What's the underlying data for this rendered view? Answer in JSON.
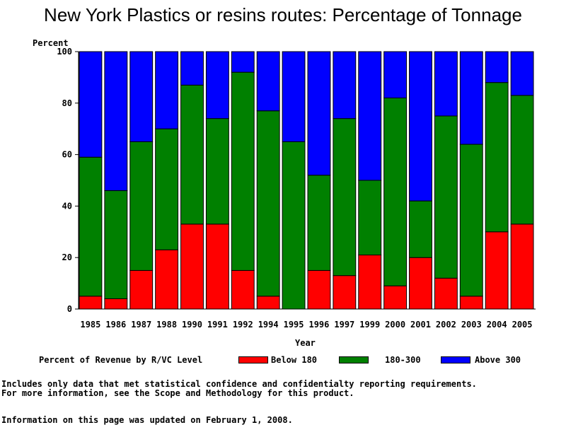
{
  "chart_data": {
    "type": "bar",
    "stacked": true,
    "title": "New York Plastics or resins routes: Percentage of Tonnage",
    "ylabel": "Percent",
    "xlabel": "Year",
    "ylim": [
      0,
      100
    ],
    "yticks": [
      "0",
      "20",
      "40",
      "60",
      "80",
      "100"
    ],
    "categories": [
      "1985",
      "1986",
      "1987",
      "1988",
      "1990",
      "1991",
      "1992",
      "1994",
      "1995",
      "1996",
      "1997",
      "1999",
      "2000",
      "2001",
      "2002",
      "2003",
      "2004",
      "2005"
    ],
    "series": [
      {
        "name": "Below 180",
        "color": "#ff0000",
        "values": [
          5,
          4,
          15,
          23,
          33,
          33,
          15,
          5,
          0,
          15,
          13,
          21,
          9,
          20,
          12,
          5,
          30,
          33
        ]
      },
      {
        "name": "180-300",
        "color": "#008000",
        "values": [
          54,
          42,
          50,
          47,
          54,
          41,
          77,
          72,
          65,
          37,
          61,
          29,
          73,
          22,
          63,
          59,
          58,
          50
        ]
      },
      {
        "name": "Above 300",
        "color": "#0000ff",
        "values": [
          41,
          54,
          35,
          30,
          13,
          26,
          8,
          23,
          35,
          48,
          26,
          50,
          18,
          58,
          25,
          36,
          12,
          17
        ]
      }
    ]
  },
  "legend": {
    "heading": "Percent of Revenue by R/VC Level",
    "items": [
      "Below 180",
      "180-300",
      "Above 300"
    ]
  },
  "notes": {
    "line1": "Includes only data that met statistical confidence and confidentialty reporting requirements.",
    "line2": "For more information, see the Scope and Methodology for this product.",
    "line3": "Information on this page was updated on February 1, 2008."
  }
}
